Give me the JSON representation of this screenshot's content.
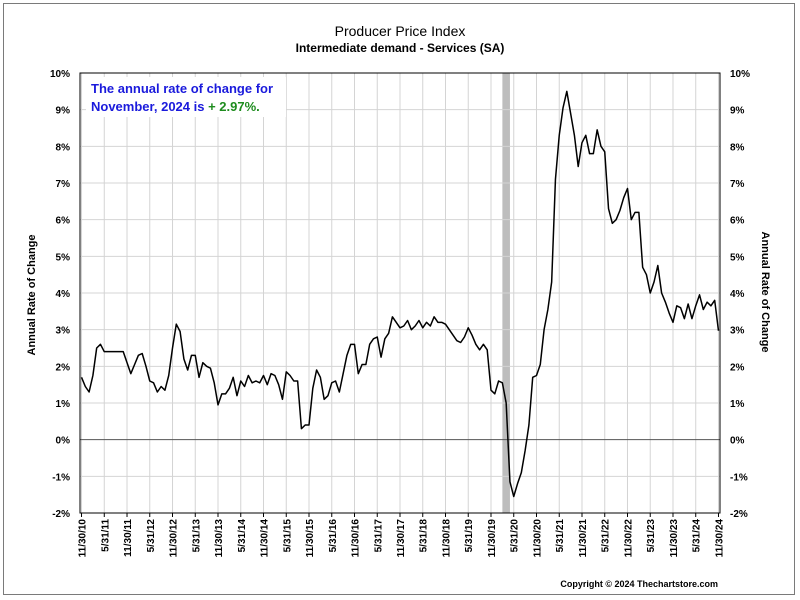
{
  "chart_data": {
    "type": "line",
    "title": "Producer Price Index",
    "subtitle": "Intermediate demand - Services (SA)",
    "ylabel_left": "Annual Rate of Change",
    "ylabel_right": "Annual Rate of Change",
    "xlabel": "",
    "ylim": [
      -2,
      10
    ],
    "yticks": [
      "-2%",
      "-1%",
      "0%",
      "1%",
      "2%",
      "3%",
      "4%",
      "5%",
      "6%",
      "7%",
      "8%",
      "9%",
      "10%"
    ],
    "xlim": [
      "2010-11",
      "2024-11"
    ],
    "xticks": [
      "11/30/10",
      "5/31/11",
      "11/30/11",
      "5/31/12",
      "11/30/12",
      "5/31/13",
      "11/30/13",
      "5/31/14",
      "11/30/14",
      "5/31/15",
      "11/30/15",
      "5/31/16",
      "11/30/16",
      "5/31/17",
      "11/30/17",
      "5/31/18",
      "11/30/18",
      "5/31/19",
      "11/30/19",
      "5/31/20",
      "11/30/20",
      "5/31/21",
      "11/30/21",
      "5/31/22",
      "11/30/22",
      "5/31/23",
      "11/30/23",
      "5/31/24",
      "11/30/24"
    ],
    "grid": true,
    "recession_shading": {
      "start": "2020-02",
      "end": "2020-04",
      "color": "#bdbdbd"
    },
    "annotation": {
      "line1": "The annual rate of change for",
      "line2_prefix": "November, 2024 is ",
      "line2_value": "+ 2.97%.",
      "color": "#1a1adc",
      "value_color": "#1e8c1e"
    },
    "series": [
      {
        "color": "#000000",
        "x": [
          "2010-11",
          "2010-12",
          "2011-01",
          "2011-02",
          "2011-03",
          "2011-04",
          "2011-05",
          "2011-06",
          "2011-07",
          "2011-08",
          "2011-09",
          "2011-10",
          "2011-11",
          "2011-12",
          "2012-01",
          "2012-02",
          "2012-03",
          "2012-04",
          "2012-05",
          "2012-06",
          "2012-07",
          "2012-08",
          "2012-09",
          "2012-10",
          "2012-11",
          "2012-12",
          "2013-01",
          "2013-02",
          "2013-03",
          "2013-04",
          "2013-05",
          "2013-06",
          "2013-07",
          "2013-08",
          "2013-09",
          "2013-10",
          "2013-11",
          "2013-12",
          "2014-01",
          "2014-02",
          "2014-03",
          "2014-04",
          "2014-05",
          "2014-06",
          "2014-07",
          "2014-08",
          "2014-09",
          "2014-10",
          "2014-11",
          "2014-12",
          "2015-01",
          "2015-02",
          "2015-03",
          "2015-04",
          "2015-05",
          "2015-06",
          "2015-07",
          "2015-08",
          "2015-09",
          "2015-10",
          "2015-11",
          "2015-12",
          "2016-01",
          "2016-02",
          "2016-03",
          "2016-04",
          "2016-05",
          "2016-06",
          "2016-07",
          "2016-08",
          "2016-09",
          "2016-10",
          "2016-11",
          "2016-12",
          "2017-01",
          "2017-02",
          "2017-03",
          "2017-04",
          "2017-05",
          "2017-06",
          "2017-07",
          "2017-08",
          "2017-09",
          "2017-10",
          "2017-11",
          "2017-12",
          "2018-01",
          "2018-02",
          "2018-03",
          "2018-04",
          "2018-05",
          "2018-06",
          "2018-07",
          "2018-08",
          "2018-09",
          "2018-10",
          "2018-11",
          "2018-12",
          "2019-01",
          "2019-02",
          "2019-03",
          "2019-04",
          "2019-05",
          "2019-06",
          "2019-07",
          "2019-08",
          "2019-09",
          "2019-10",
          "2019-11",
          "2019-12",
          "2020-01",
          "2020-02",
          "2020-03",
          "2020-04",
          "2020-05",
          "2020-06",
          "2020-07",
          "2020-08",
          "2020-09",
          "2020-10",
          "2020-11",
          "2020-12",
          "2021-01",
          "2021-02",
          "2021-03",
          "2021-04",
          "2021-05",
          "2021-06",
          "2021-07",
          "2021-08",
          "2021-09",
          "2021-10",
          "2021-11",
          "2021-12",
          "2022-01",
          "2022-02",
          "2022-03",
          "2022-04",
          "2022-05",
          "2022-06",
          "2022-07",
          "2022-08",
          "2022-09",
          "2022-10",
          "2022-11",
          "2022-12",
          "2023-01",
          "2023-02",
          "2023-03",
          "2023-04",
          "2023-05",
          "2023-06",
          "2023-07",
          "2023-08",
          "2023-09",
          "2023-10",
          "2023-11",
          "2023-12",
          "2024-01",
          "2024-02",
          "2024-03",
          "2024-04",
          "2024-05",
          "2024-06",
          "2024-07",
          "2024-08",
          "2024-09",
          "2024-10",
          "2024-11"
        ],
        "y": [
          1.7,
          1.45,
          1.3,
          1.75,
          2.5,
          2.6,
          2.4,
          2.4,
          2.4,
          2.4,
          2.4,
          2.4,
          2.1,
          1.8,
          2.05,
          2.3,
          2.35,
          2.0,
          1.6,
          1.55,
          1.3,
          1.45,
          1.35,
          1.75,
          2.5,
          3.15,
          2.95,
          2.2,
          1.9,
          2.3,
          2.3,
          1.7,
          2.1,
          2.0,
          1.95,
          1.55,
          0.95,
          1.25,
          1.25,
          1.4,
          1.7,
          1.2,
          1.6,
          1.45,
          1.75,
          1.55,
          1.6,
          1.55,
          1.75,
          1.5,
          1.8,
          1.75,
          1.5,
          1.1,
          1.85,
          1.75,
          1.6,
          1.6,
          0.3,
          0.4,
          0.4,
          1.4,
          1.9,
          1.7,
          1.1,
          1.2,
          1.55,
          1.6,
          1.3,
          1.8,
          2.3,
          2.6,
          2.6,
          1.8,
          2.05,
          2.05,
          2.6,
          2.75,
          2.8,
          2.25,
          2.75,
          2.9,
          3.35,
          3.2,
          3.05,
          3.1,
          3.25,
          3.0,
          3.1,
          3.25,
          3.05,
          3.2,
          3.1,
          3.35,
          3.2,
          3.2,
          3.15,
          3.0,
          2.85,
          2.7,
          2.65,
          2.8,
          3.05,
          2.85,
          2.6,
          2.45,
          2.6,
          2.45,
          1.35,
          1.25,
          1.6,
          1.55,
          1.0,
          -1.15,
          -1.55,
          -1.2,
          -0.9,
          -0.3,
          0.4,
          1.7,
          1.75,
          2.05,
          3.0,
          3.55,
          4.3,
          7.1,
          8.3,
          9.05,
          9.5,
          8.9,
          8.3,
          7.45,
          8.1,
          8.3,
          7.8,
          7.8,
          8.45,
          8.0,
          7.85,
          6.3,
          5.9,
          6.0,
          6.25,
          6.6,
          6.85,
          6.0,
          6.2,
          6.2,
          4.7,
          4.5,
          4.0,
          4.3,
          4.75,
          4.0,
          3.75,
          3.45,
          3.2,
          3.65,
          3.6,
          3.3,
          3.7,
          3.3,
          3.65,
          3.95,
          3.55,
          3.75,
          3.65,
          3.8,
          2.97
        ]
      }
    ]
  },
  "footer": {
    "copyright": "Copyright © 2024 Thechartstore.com"
  }
}
